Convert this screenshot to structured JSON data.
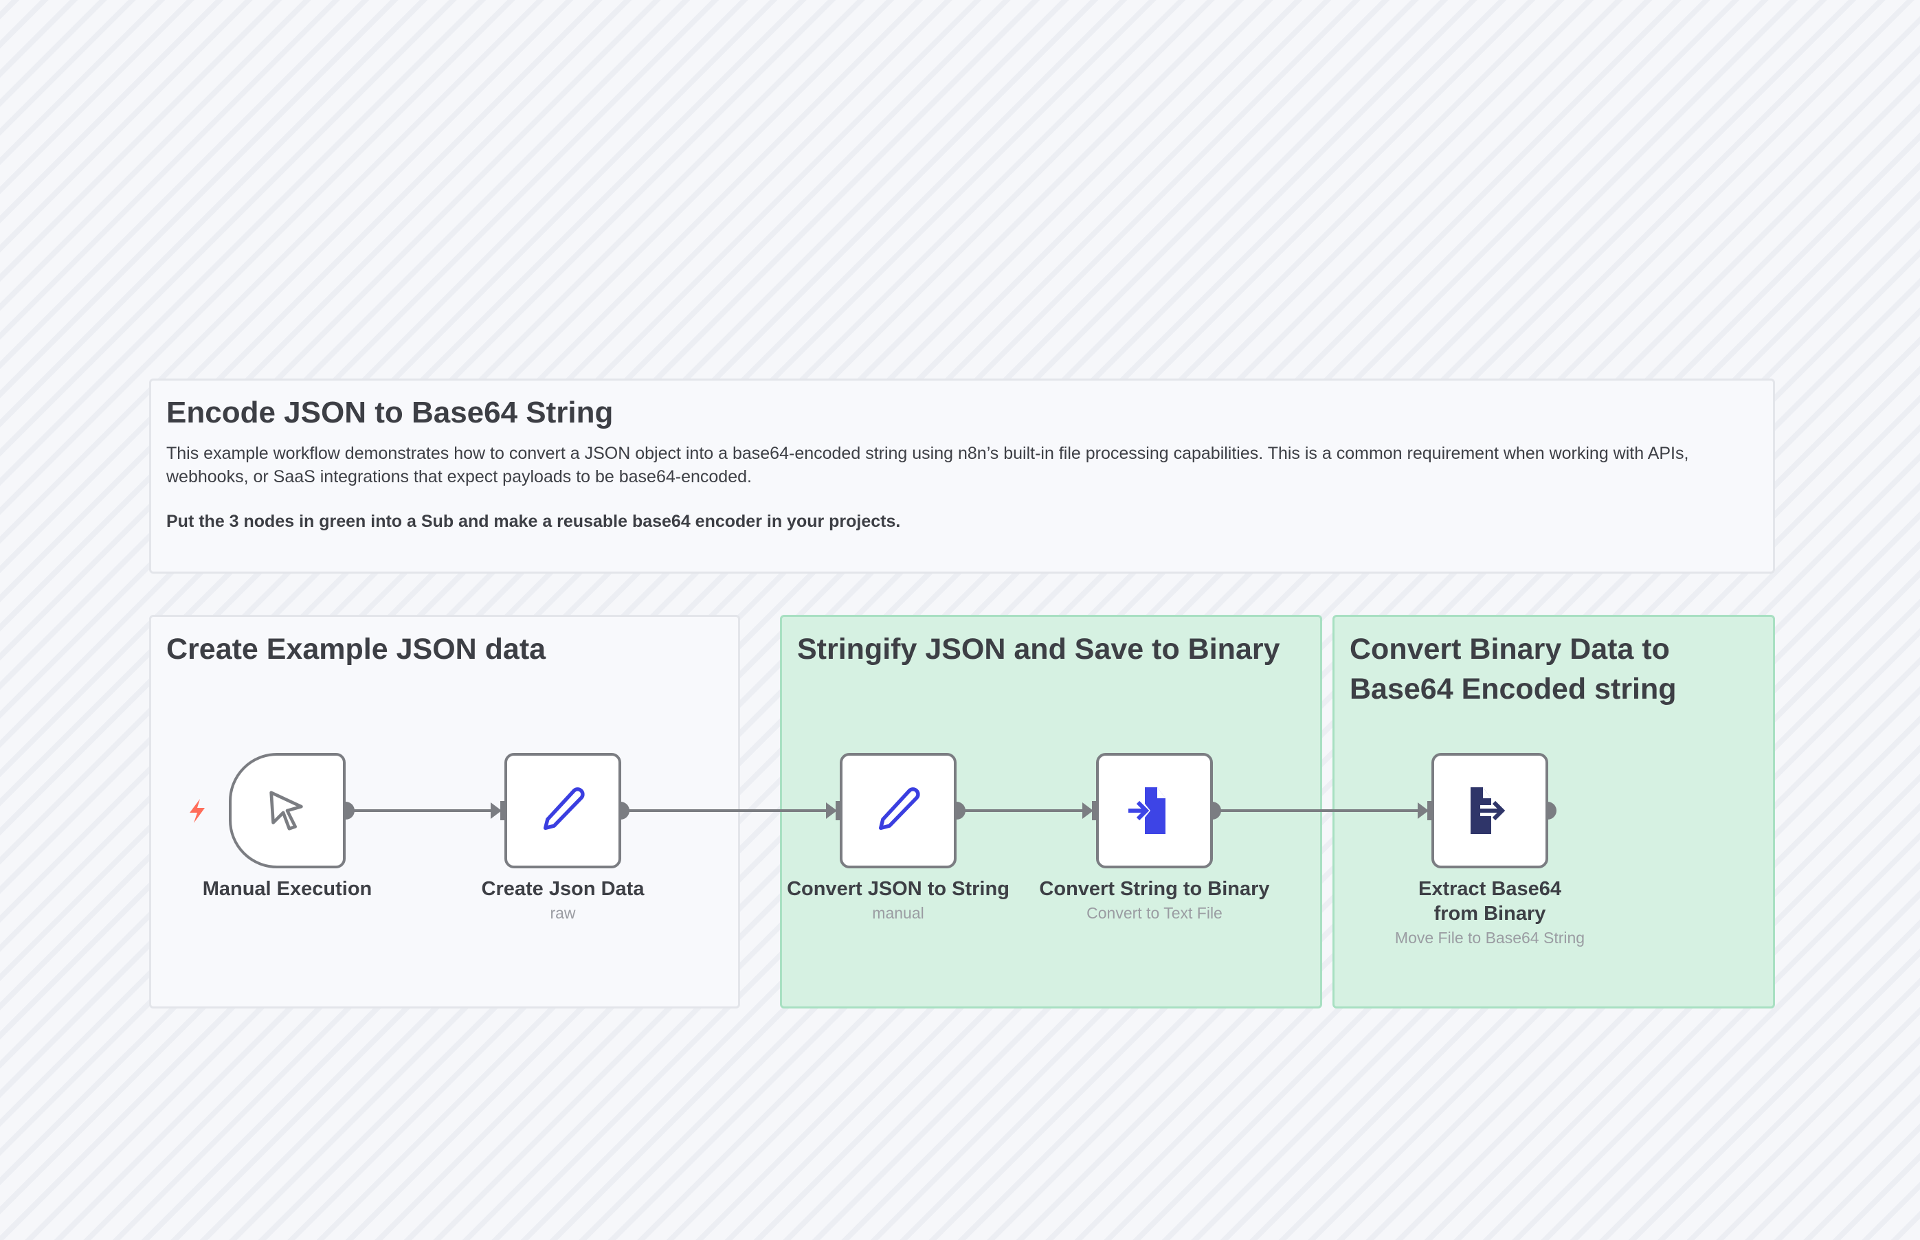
{
  "intro_note": {
    "title": "Encode JSON to Base64 String",
    "text": "This example workflow demonstrates how to convert a JSON object into a base64-encoded string using n8n’s built-in file processing capabilities. This is a common requirement when working with APIs, webhooks, or SaaS integrations that expect payloads to be base64-encoded.",
    "bold_text": "Put the 3 nodes in green into a Sub and make a reusable base64 encoder in your projects."
  },
  "groups": [
    {
      "title": "Create Example JSON data",
      "color": "#f8f9fc"
    },
    {
      "title": "Stringify JSON and Save to Binary",
      "color": "#d6f1e2"
    },
    {
      "title": "Convert Binary Data to Base64 Encoded string",
      "color": "#d6f1e2"
    }
  ],
  "nodes": [
    {
      "name": "Manual Execution",
      "subtitle": "",
      "icon": "cursor-icon"
    },
    {
      "name": "Create Json Data",
      "subtitle": "raw",
      "icon": "pencil-icon"
    },
    {
      "name": "Convert JSON to String",
      "subtitle": "manual",
      "icon": "pencil-icon"
    },
    {
      "name": "Convert String to Binary",
      "subtitle": "Convert to Text File",
      "icon": "file-import-icon"
    },
    {
      "name": "Extract Base64 from Binary",
      "subtitle": "Move File to Base64 String",
      "icon": "file-export-icon"
    }
  ],
  "colors": {
    "trigger_bolt": "#ff6d5a",
    "pencil": "#3a3ee0",
    "convert_icon": "#3d44e6",
    "extract_icon": "#2f3569",
    "connection": "#7b7d82"
  }
}
